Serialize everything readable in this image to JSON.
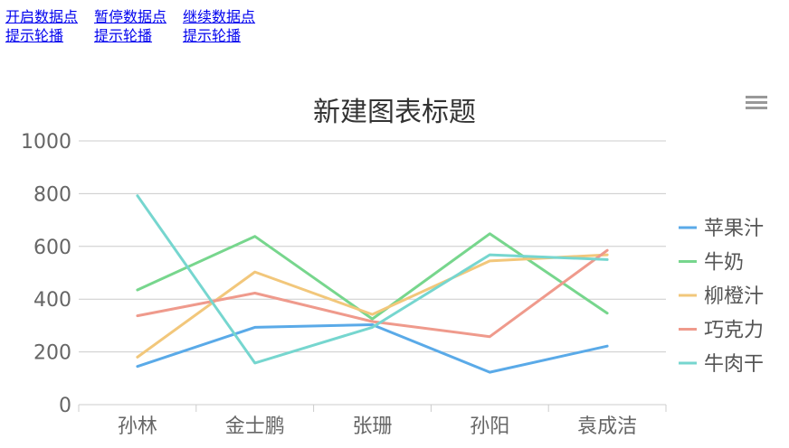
{
  "links": [
    {
      "line1": "开启数据点",
      "line2": "提示轮播"
    },
    {
      "line1": "暂停数据点",
      "line2": "提示轮播"
    },
    {
      "line1": "继续数据点",
      "line2": "提示轮播"
    }
  ],
  "chart_data": {
    "type": "line",
    "title": "新建图表标题",
    "categories": [
      "孙林",
      "金士鹏",
      "张珊",
      "孙阳",
      "袁成洁"
    ],
    "ylim": [
      0,
      1000
    ],
    "yticks": [
      0,
      200,
      400,
      600,
      800,
      1000
    ],
    "grid": true,
    "legend_position": "right",
    "series": [
      {
        "name": "苹果汁",
        "color": "#5aaae8",
        "values": [
          145,
          293,
          303,
          123,
          222
        ]
      },
      {
        "name": "牛奶",
        "color": "#77d68d",
        "values": [
          435,
          638,
          325,
          648,
          347
        ]
      },
      {
        "name": "柳橙汁",
        "color": "#f2c77b",
        "values": [
          180,
          503,
          342,
          545,
          568
        ]
      },
      {
        "name": "巧克力",
        "color": "#ef9a8c",
        "values": [
          337,
          423,
          315,
          258,
          585
        ]
      },
      {
        "name": "牛肉干",
        "color": "#76d6cf",
        "values": [
          792,
          158,
          293,
          568,
          550
        ]
      }
    ]
  }
}
